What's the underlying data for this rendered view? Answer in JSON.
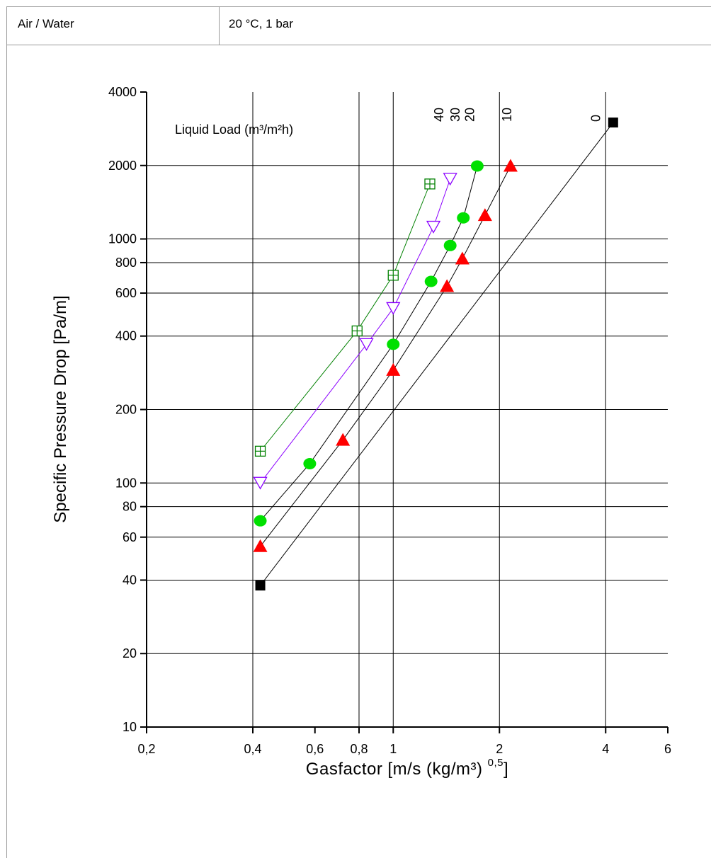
{
  "header": {
    "cells": [
      "Air / Water",
      "20 °C, 1 bar"
    ]
  },
  "chart_data": {
    "type": "scatter",
    "title": "",
    "xlabel": "Gasfactor [m/s (kg/m³) ",
    "xlabel_exp": "0,5",
    "xlabel_close": "]",
    "ylabel": "Specific Pressure Drop [Pa/m]",
    "x_scale": "log",
    "y_scale": "log",
    "xlim": [
      0.2,
      6
    ],
    "ylim": [
      10,
      4000
    ],
    "x_ticks": [
      {
        "v": 0.2,
        "label": "0,2"
      },
      {
        "v": 0.4,
        "label": "0,4"
      },
      {
        "v": 0.6,
        "label": "0,6"
      },
      {
        "v": 0.8,
        "label": "0,8"
      },
      {
        "v": 1,
        "label": "1"
      },
      {
        "v": 2,
        "label": "2"
      },
      {
        "v": 4,
        "label": "4"
      },
      {
        "v": 6,
        "label": "6"
      }
    ],
    "y_ticks": [
      {
        "v": 10,
        "label": "10"
      },
      {
        "v": 20,
        "label": "20"
      },
      {
        "v": 40,
        "label": "40"
      },
      {
        "v": 60,
        "label": "60"
      },
      {
        "v": 80,
        "label": "80"
      },
      {
        "v": 100,
        "label": "100"
      },
      {
        "v": 200,
        "label": "200"
      },
      {
        "v": 400,
        "label": "400"
      },
      {
        "v": 600,
        "label": "600"
      },
      {
        "v": 800,
        "label": "800"
      },
      {
        "v": 1000,
        "label": "1000"
      },
      {
        "v": 2000,
        "label": "2000"
      },
      {
        "v": 4000,
        "label": "4000"
      }
    ],
    "x_gridlines": [
      0.4,
      0.8,
      1,
      2,
      4
    ],
    "y_gridlines": [
      20,
      40,
      60,
      80,
      100,
      200,
      400,
      600,
      800,
      1000,
      2000
    ],
    "legend_title": "Liquid Load (m³/m²h)",
    "legend_labels": [
      {
        "label": "40",
        "x": 1.35
      },
      {
        "label": "30",
        "x": 1.5
      },
      {
        "label": "20",
        "x": 1.65
      },
      {
        "label": "10",
        "x": 2.1
      },
      {
        "label": "0",
        "x": 3.75
      }
    ],
    "series": [
      {
        "name": "0",
        "marker": "square",
        "color": "#000000",
        "line_color": "#000000",
        "points": [
          [
            0.42,
            38
          ],
          [
            4.2,
            3000
          ]
        ]
      },
      {
        "name": "10",
        "marker": "triangle",
        "color": "#ff0000",
        "line_color": "#000000",
        "points": [
          [
            0.42,
            55
          ],
          [
            0.72,
            150
          ],
          [
            1.0,
            290
          ],
          [
            1.42,
            640
          ],
          [
            1.57,
            830
          ],
          [
            1.82,
            1250
          ],
          [
            2.15,
            1990
          ]
        ]
      },
      {
        "name": "20",
        "marker": "circle",
        "color": "#00e000",
        "line_color": "#000000",
        "points": [
          [
            0.42,
            70
          ],
          [
            0.58,
            120
          ],
          [
            1.0,
            370
          ],
          [
            1.28,
            670
          ],
          [
            1.45,
            940
          ],
          [
            1.58,
            1220
          ],
          [
            1.73,
            1990
          ]
        ]
      },
      {
        "name": "30",
        "marker": "triangle-down",
        "color": "#8b00ff",
        "line_color": "#8b00ff",
        "points": [
          [
            0.42,
            100
          ],
          [
            0.84,
            370
          ],
          [
            1.0,
            520
          ],
          [
            1.3,
            1120
          ],
          [
            1.45,
            1760
          ]
        ]
      },
      {
        "name": "40",
        "marker": "boxplus",
        "color": "#008000",
        "line_color": "#008000",
        "points": [
          [
            0.42,
            135
          ],
          [
            0.79,
            420
          ],
          [
            1.0,
            710
          ],
          [
            1.27,
            1680
          ]
        ]
      }
    ]
  }
}
